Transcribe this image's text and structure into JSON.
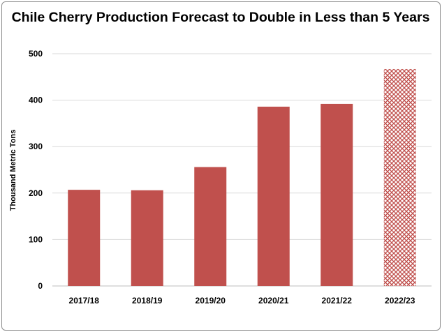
{
  "chart_data": {
    "type": "bar",
    "title": "Chile Cherry Production Forecast to Double in Less than 5 Years",
    "xlabel": "",
    "ylabel": "Thousand Metric Tons",
    "categories": [
      "2017/18",
      "2018/19",
      "2019/20",
      "2020/21",
      "2021/22",
      "2022/23"
    ],
    "values": [
      207,
      206,
      256,
      386,
      392,
      467
    ],
    "forecast": [
      false,
      false,
      false,
      false,
      false,
      true
    ],
    "ylim": [
      0,
      500
    ],
    "yticks": [
      0,
      100,
      200,
      300,
      400,
      500
    ],
    "ytick_labels": [
      "0",
      "100",
      "200",
      "300",
      "400",
      "500"
    ],
    "grid": true,
    "legend": "none",
    "colors": {
      "bar": "#c0504d",
      "forecast_pattern": "#c0504d",
      "grid": "#d9d9d9"
    }
  }
}
